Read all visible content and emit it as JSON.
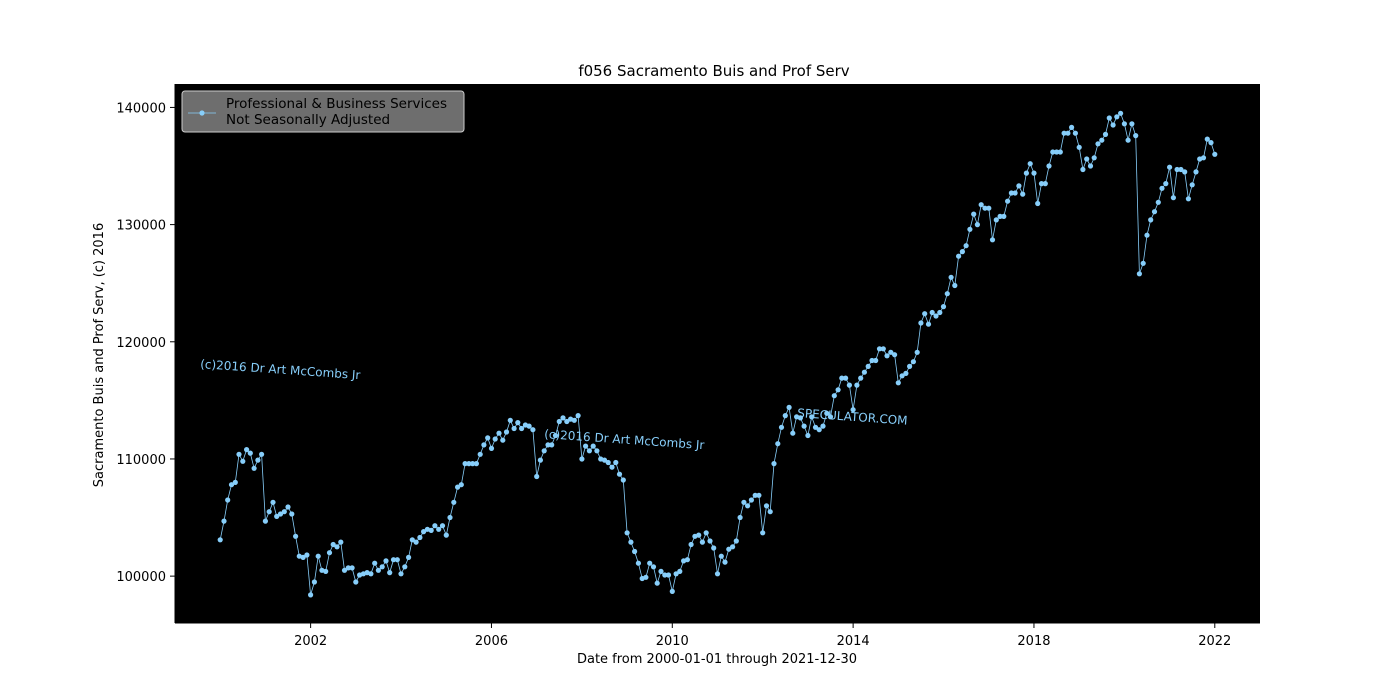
{
  "chart_data": {
    "type": "line",
    "title": "f056 Sacramento Buis and Prof Serv",
    "xlabel": "Date from 2000-01-01 through 2021-12-30",
    "ylabel": "Sacramento Buis and Prof Serv, (c) 2016",
    "x_axis": "date",
    "xlim": [
      "1999-01-01",
      "2023-01-01"
    ],
    "ylim": [
      96000,
      142000
    ],
    "x_ticks": [
      "2002",
      "2006",
      "2010",
      "2014",
      "2018",
      "2022"
    ],
    "y_ticks": [
      100000,
      110000,
      120000,
      130000,
      140000
    ],
    "grid": false,
    "background_color": "#000000",
    "line_color": "#87cefa",
    "legend": {
      "placement": "top-left",
      "entries": [
        "Professional & Business Services",
        "Not Seasonally Adjusted"
      ]
    },
    "annotations": [
      "(c)2016 Dr Art McCombs Jr",
      "(c)2016 Dr Art McCombs Jr",
      "SPECULATOR.COM"
    ],
    "series": [
      {
        "start": "2000-01",
        "frequency": "monthly",
        "values": [
          103100,
          104700,
          106500,
          107800,
          108000,
          110400,
          109800,
          110800,
          110500,
          109200,
          109900,
          110400,
          104700,
          105500,
          106300,
          105100,
          105300,
          105500,
          105900,
          105300,
          103400,
          101700,
          101600,
          101800,
          98400,
          99500,
          101700,
          100500,
          100400,
          102000,
          102700,
          102500,
          102900,
          100500,
          100700,
          100700,
          99500,
          100100,
          100200,
          100300,
          100200,
          101100,
          100500,
          100800,
          101300,
          100300,
          101400,
          101400,
          100200,
          100800,
          101600,
          103100,
          102900,
          103300,
          103800,
          104000,
          103900,
          104300,
          104000,
          104300,
          103500,
          105000,
          106300,
          107600,
          107800,
          109600,
          109600,
          109600,
          109600,
          110400,
          111200,
          111800,
          110900,
          111700,
          112200,
          111600,
          112300,
          113300,
          112600,
          113100,
          112600,
          112900,
          112800,
          112500,
          108500,
          109900,
          110700,
          111200,
          111200,
          112000,
          113200,
          113500,
          113200,
          113400,
          113300,
          113700,
          110000,
          111100,
          110700,
          111100,
          110700,
          110000,
          109900,
          109700,
          109300,
          109700,
          108700,
          108200,
          103700,
          102900,
          102100,
          101100,
          99800,
          99900,
          101100,
          100800,
          99400,
          100400,
          100100,
          100100,
          98700,
          100200,
          100400,
          101300,
          101400,
          102700,
          103400,
          103500,
          102900,
          103700,
          103000,
          102400,
          100200,
          101700,
          101200,
          102300,
          102500,
          103000,
          105000,
          106300,
          106000,
          106500,
          106900,
          106900,
          103700,
          106000,
          105500,
          109600,
          111300,
          112700,
          113700,
          114400,
          112200,
          113600,
          113500,
          112800,
          112000,
          113600,
          112700,
          112500,
          112800,
          113900,
          113600,
          115400,
          115900,
          116900,
          116900,
          116300,
          114200,
          116300,
          116900,
          117400,
          117900,
          118400,
          118400,
          119400,
          119400,
          118800,
          119100,
          118900,
          116500,
          117100,
          117300,
          117900,
          118300,
          119100,
          121600,
          122400,
          121500,
          122500,
          122200,
          122500,
          123000,
          124100,
          125500,
          124800,
          127300,
          127700,
          128200,
          129600,
          130900,
          130000,
          131700,
          131400,
          131400,
          128700,
          130400,
          130700,
          130700,
          132000,
          132700,
          132700,
          133300,
          132600,
          134400,
          135200,
          134400,
          131800,
          133500,
          133500,
          135000,
          136200,
          136200,
          136200,
          137800,
          137800,
          138300,
          137800,
          136600,
          134700,
          135600,
          135000,
          135700,
          136900,
          137200,
          137700,
          139100,
          138500,
          139200,
          139500,
          138600,
          137200,
          138600,
          137600,
          125800,
          126700,
          129100,
          130400,
          131100,
          131900,
          133100,
          133500,
          134900,
          132300,
          134700,
          134700,
          134500,
          132200,
          133400,
          134500,
          135600,
          135700,
          137300,
          137000,
          136000
        ]
      }
    ]
  }
}
